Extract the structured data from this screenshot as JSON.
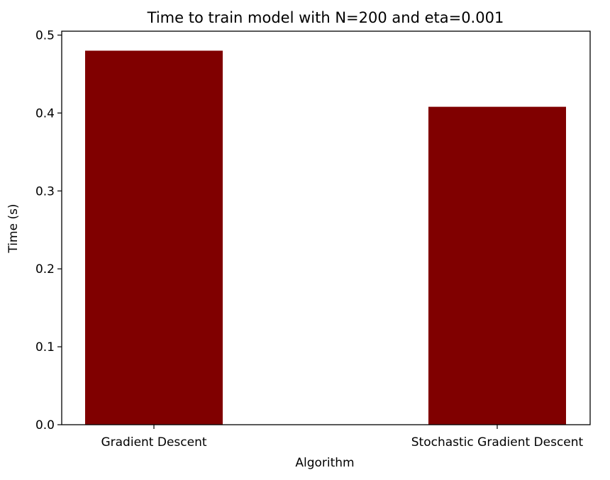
{
  "chart_data": {
    "type": "bar",
    "title": "Time to train model with N=200 and eta=0.001",
    "xlabel": "Algorithm",
    "ylabel": "Time (s)",
    "categories": [
      "Gradient Descent",
      "Stochastic Gradient Descent"
    ],
    "values": [
      0.48,
      0.408
    ],
    "ylim": [
      0,
      0.505
    ],
    "yticks": [
      "0.0",
      "0.1",
      "0.2",
      "0.3",
      "0.4",
      "0.5"
    ],
    "bar_color": "#800000",
    "grid": false,
    "legend": "none"
  }
}
